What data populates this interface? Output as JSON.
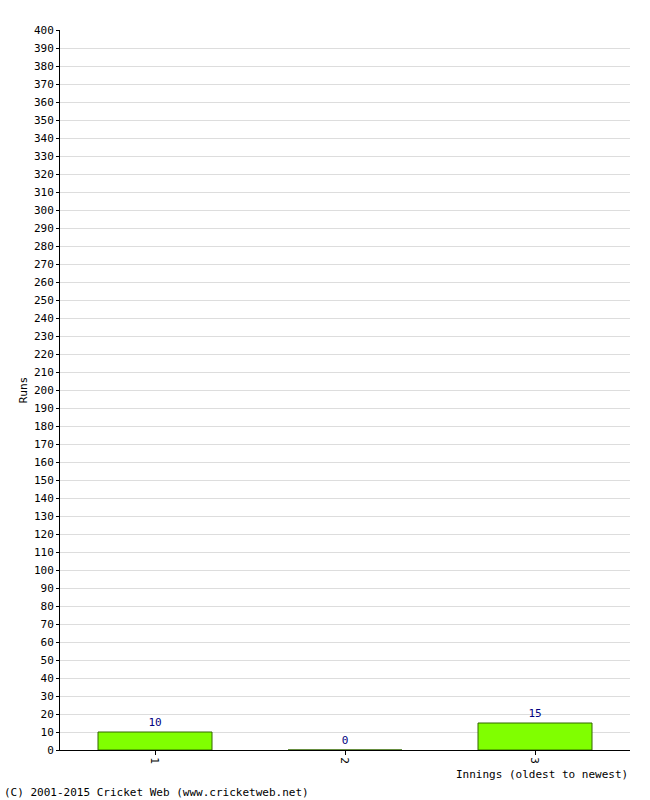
{
  "chart_data": {
    "type": "bar",
    "categories": [
      "1",
      "2",
      "3"
    ],
    "values": [
      10,
      0,
      15
    ],
    "color": "#80ff00",
    "ylabel": "Runs",
    "xlabel": "Innings (oldest to newest)",
    "annotations": [
      "(C) 2001-2015 Cricket Web (www.cricketweb.net)"
    ],
    "ylim": [
      0,
      400
    ],
    "yticks": [
      0,
      10,
      20,
      30,
      40,
      50,
      60,
      70,
      80,
      90,
      100,
      110,
      120,
      130,
      140,
      150,
      160,
      170,
      180,
      190,
      200,
      210,
      220,
      230,
      240,
      250,
      260,
      270,
      280,
      290,
      300,
      310,
      320,
      330,
      340,
      350,
      360,
      370,
      380,
      390,
      400
    ],
    "grid": true,
    "data_labels": true
  }
}
